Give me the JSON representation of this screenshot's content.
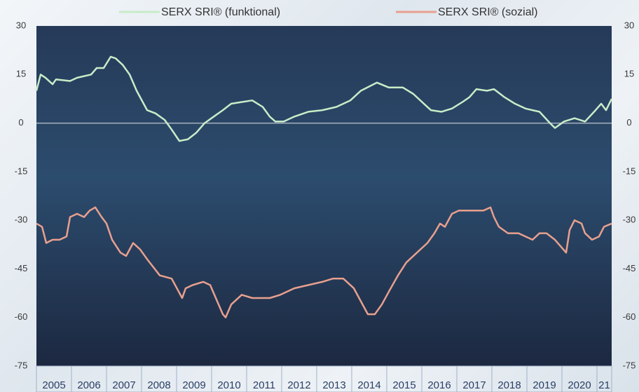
{
  "chart_data": {
    "type": "line",
    "series": [
      {
        "name": "SERX SRI® (funktional)",
        "color": "#c8ecc8",
        "x": [
          2005.0,
          2005.12,
          2005.26,
          2005.46,
          2005.56,
          2005.96,
          2006.16,
          2006.56,
          2006.72,
          2006.92,
          2007.12,
          2007.26,
          2007.46,
          2007.66,
          2007.86,
          2008.16,
          2008.4,
          2008.66,
          2008.86,
          2009.08,
          2009.32,
          2009.56,
          2009.8,
          2010.06,
          2010.32,
          2010.56,
          2010.86,
          2011.16,
          2011.46,
          2011.66,
          2011.82,
          2012.06,
          2012.36,
          2012.76,
          2013.16,
          2013.56,
          2013.96,
          2014.26,
          2014.72,
          2015.06,
          2015.46,
          2015.76,
          2016.06,
          2016.26,
          2016.56,
          2016.86,
          2017.16,
          2017.36,
          2017.56,
          2017.86,
          2018.06,
          2018.36,
          2018.66,
          2018.96,
          2019.36,
          2019.66,
          2019.8,
          2020.06,
          2020.36,
          2020.66,
          2020.96,
          2021.12,
          2021.26,
          2021.42
        ],
        "values": [
          10,
          15,
          14,
          12,
          13.5,
          13,
          14,
          15,
          17,
          17,
          20.5,
          20,
          18,
          15,
          10,
          4,
          3,
          1,
          -2,
          -5.5,
          -5,
          -3,
          0,
          2,
          4,
          6,
          6.5,
          7,
          5,
          2,
          0.5,
          0.5,
          2,
          3.5,
          4,
          5,
          7,
          10,
          12.5,
          11,
          11,
          9,
          6,
          4,
          3.5,
          4.5,
          6.5,
          8,
          10.5,
          10,
          10.5,
          8,
          6,
          4.5,
          3.5,
          0,
          -1.5,
          0.5,
          1.5,
          0.5,
          4,
          6,
          4,
          7.5
        ]
      },
      {
        "name": "SERX SRI® (sozial)",
        "color": "#e8a08e",
        "x": [
          2005.0,
          2005.16,
          2005.28,
          2005.46,
          2005.66,
          2005.86,
          2005.96,
          2006.16,
          2006.36,
          2006.52,
          2006.68,
          2006.86,
          2007.0,
          2007.16,
          2007.4,
          2007.56,
          2007.76,
          2007.96,
          2008.16,
          2008.52,
          2008.86,
          2009.06,
          2009.16,
          2009.26,
          2009.46,
          2009.76,
          2009.96,
          2010.16,
          2010.32,
          2010.4,
          2010.56,
          2010.86,
          2011.16,
          2011.36,
          2011.66,
          2011.96,
          2012.36,
          2012.76,
          2013.16,
          2013.46,
          2013.76,
          2014.06,
          2014.26,
          2014.46,
          2014.66,
          2014.86,
          2015.06,
          2015.32,
          2015.56,
          2015.86,
          2016.16,
          2016.36,
          2016.52,
          2016.66,
          2016.86,
          2017.06,
          2017.36,
          2017.76,
          2017.96,
          2018.06,
          2018.2,
          2018.46,
          2018.76,
          2018.96,
          2019.16,
          2019.36,
          2019.56,
          2019.8,
          2019.96,
          2020.12,
          2020.22,
          2020.36,
          2020.56,
          2020.66,
          2020.86,
          2021.06,
          2021.2,
          2021.42
        ],
        "values": [
          -31,
          -32,
          -37,
          -36,
          -36,
          -35,
          -29,
          -28,
          -29,
          -27,
          -26,
          -29,
          -31,
          -36,
          -40,
          -41,
          -37,
          -39,
          -42,
          -47,
          -48,
          -52,
          -54,
          -51,
          -50,
          -49,
          -50,
          -55,
          -59,
          -60,
          -56,
          -53,
          -54,
          -54,
          -54,
          -53,
          -51,
          -50,
          -49,
          -48,
          -48,
          -51,
          -55,
          -59,
          -59,
          -56,
          -52,
          -47,
          -43,
          -40,
          -37,
          -34,
          -31,
          -32,
          -28,
          -27,
          -27,
          -27,
          -26,
          -29,
          -32,
          -34,
          -34,
          -35,
          -36,
          -34,
          -34,
          -36,
          -38,
          -40,
          -33,
          -30,
          -31,
          -34,
          -36,
          -35,
          -32,
          -31
        ]
      }
    ],
    "categories": [
      "2005",
      "2006",
      "2007",
      "2008",
      "2009",
      "2010",
      "2011",
      "2012",
      "2013",
      "2014",
      "2015",
      "2016",
      "2017",
      "2018",
      "2019",
      "2020",
      "21"
    ],
    "xlim": [
      2005,
      2021.42
    ],
    "ylim": [
      -75,
      30
    ],
    "yticks": [
      30,
      15,
      0,
      -15,
      -30,
      -45,
      -60,
      -75
    ],
    "zeroline": true
  }
}
